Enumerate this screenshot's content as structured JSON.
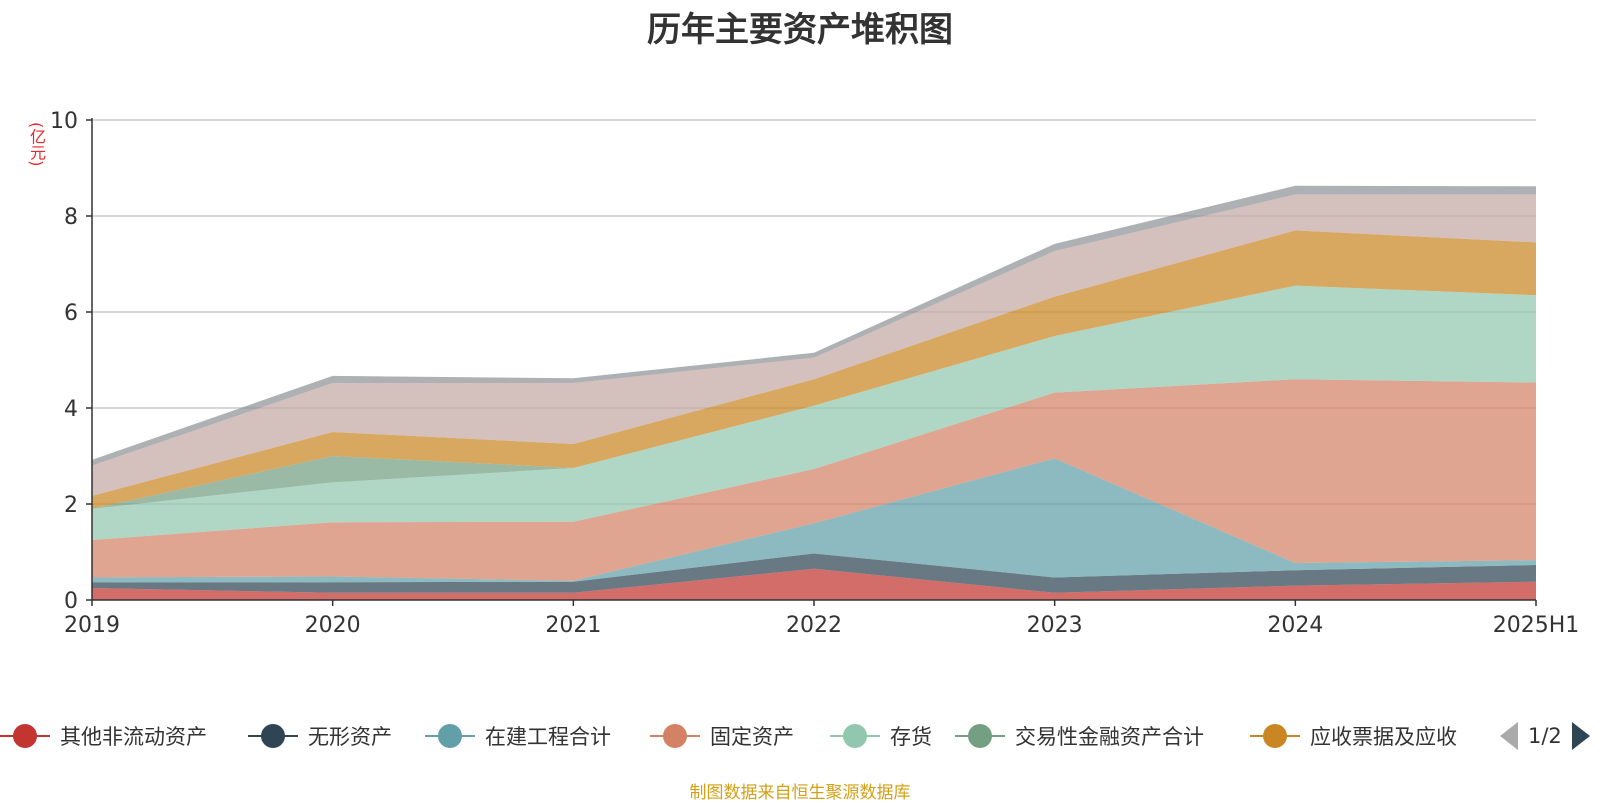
{
  "title": "历年主要资产堆积图",
  "unit_label": "(亿元)",
  "source_text": "制图数据来自恒生聚源数据库",
  "pager": {
    "text": "1/2",
    "prev_icon": "triangle-left-icon",
    "next_icon": "triangle-right-icon"
  },
  "legend": [
    {
      "name": "其他非流动资产",
      "color": "#c23531"
    },
    {
      "name": "无形资产",
      "color": "#2f4554"
    },
    {
      "name": "在建工程合计",
      "color": "#61a0a8"
    },
    {
      "name": "固定资产",
      "color": "#d48265"
    },
    {
      "name": "存货",
      "color": "#91c7ae"
    },
    {
      "name": "交易性金融资产合计",
      "color": "#749f83"
    },
    {
      "name": "应收票据及应收",
      "color": "#ca8622"
    }
  ],
  "chart_data": {
    "type": "area",
    "stacked": true,
    "title": "历年主要资产堆积图",
    "ylabel": "(亿元)",
    "ylim": [
      0,
      10
    ],
    "yticks": [
      0,
      2,
      4,
      6,
      8,
      10
    ],
    "grid": true,
    "legend_position": "bottom",
    "categories": [
      "2019",
      "2020",
      "2021",
      "2022",
      "2023",
      "2024",
      "2025H1"
    ],
    "series": [
      {
        "name": "其他非流动资产",
        "color": "#c23531",
        "values": [
          0.25,
          0.15,
          0.15,
          0.65,
          0.15,
          0.3,
          0.38
        ]
      },
      {
        "name": "无形资产",
        "color": "#2f4554",
        "values": [
          0.12,
          0.22,
          0.23,
          0.32,
          0.32,
          0.32,
          0.35
        ]
      },
      {
        "name": "在建工程合计",
        "color": "#61a0a8",
        "values": [
          0.1,
          0.12,
          0.02,
          0.63,
          2.48,
          0.15,
          0.1
        ]
      },
      {
        "name": "固定资产",
        "color": "#d48265",
        "values": [
          0.78,
          1.13,
          1.23,
          1.13,
          1.37,
          3.83,
          3.7
        ]
      },
      {
        "name": "存货",
        "color": "#91c7ae",
        "values": [
          0.65,
          0.83,
          1.12,
          1.32,
          1.18,
          1.95,
          1.82
        ]
      },
      {
        "name": "交易性金融资产合计",
        "color": "#749f83",
        "values": [
          0,
          0.55,
          0.0,
          0.0,
          0.0,
          0.0,
          0.0
        ]
      },
      {
        "name": "应收票据及应收",
        "color": "#ca8622",
        "values": [
          0.27,
          0.5,
          0.5,
          0.55,
          0.82,
          1.15,
          1.1
        ]
      },
      {
        "name": "",
        "color": "#c4a8a2",
        "values": [
          0.63,
          1.02,
          1.27,
          0.45,
          0.95,
          0.75,
          1.0
        ]
      },
      {
        "name": "",
        "color": "#8f9397",
        "values": [
          0.12,
          0.15,
          0.1,
          0.1,
          0.15,
          0.18,
          0.17
        ]
      }
    ]
  }
}
